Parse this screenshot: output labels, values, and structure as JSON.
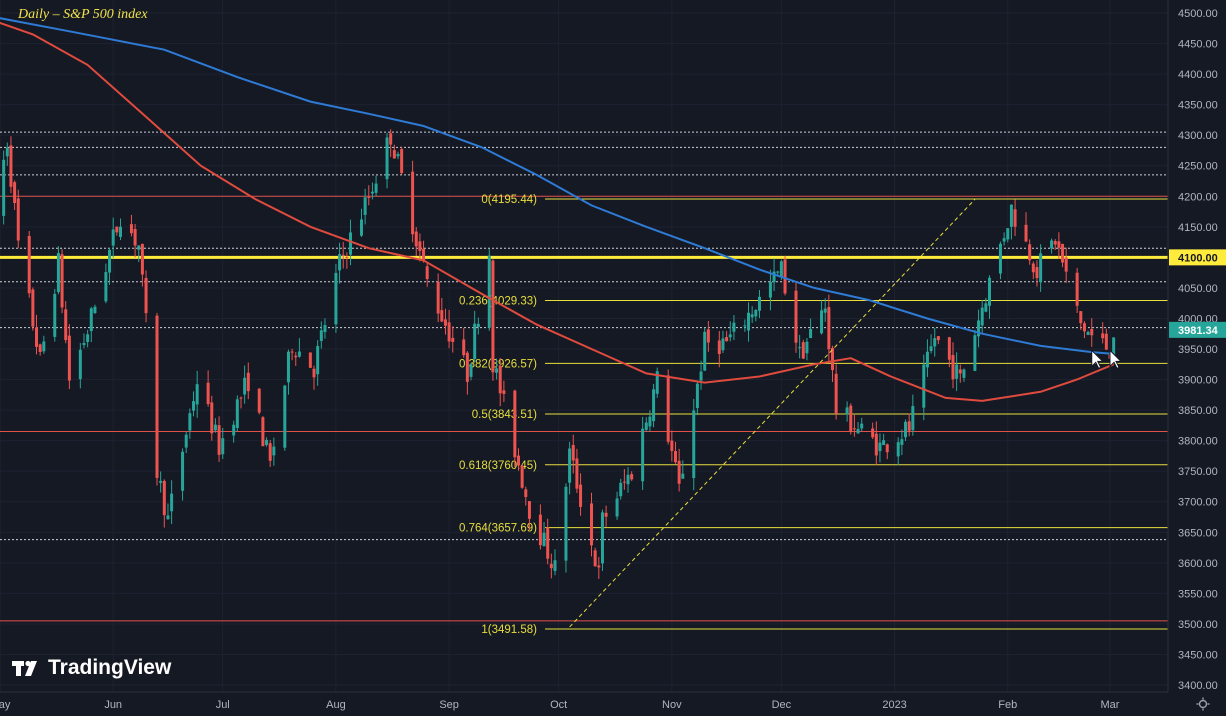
{
  "title": "Daily – S&P 500 index",
  "brand": "TradingView",
  "colors": {
    "background": "#151924",
    "up": "#26a69a",
    "down": "#ef5350",
    "ma_blue": "#2e7bd6",
    "ma_red": "#e04b3e",
    "fib": "#e8de3c",
    "key_level": "#ffeb3b",
    "red_level": "#e0514a"
  },
  "chart_data": {
    "type": "candlestick",
    "title": "Daily – S&P 500 index",
    "ylim": [
      3400,
      4500
    ],
    "y_ticks": [
      3400,
      3450,
      3500,
      3550,
      3600,
      3650,
      3700,
      3750,
      3800,
      3850,
      3900,
      3950,
      4000,
      4050,
      4100,
      4150,
      4200,
      4250,
      4300,
      4350,
      4400,
      4450,
      4500
    ],
    "y_tick_labels": [
      "3400.00",
      "3450.00",
      "3500.00",
      "3550.00",
      "3600.00",
      "3650.00",
      "3700.00",
      "3750.00",
      "3800.00",
      "3850.00",
      "3900.00",
      "3950.00",
      "4000.00",
      "4050.00",
      "4100.00",
      "4150.00",
      "4200.00",
      "4250.00",
      "4300.00",
      "4350.00",
      "4400.00",
      "4450.00",
      "4500.00"
    ],
    "x_ticks": [
      {
        "label": "May",
        "date": "2022-05-01"
      },
      {
        "label": "Jun",
        "date": "2022-06-01"
      },
      {
        "label": "Jul",
        "date": "2022-07-01"
      },
      {
        "label": "Aug",
        "date": "2022-08-01"
      },
      {
        "label": "Sep",
        "date": "2022-09-01"
      },
      {
        "label": "Oct",
        "date": "2022-10-01"
      },
      {
        "label": "Nov",
        "date": "2022-11-01"
      },
      {
        "label": "Dec",
        "date": "2022-12-01"
      },
      {
        "label": "2023",
        "date": "2023-01-01"
      },
      {
        "label": "Feb",
        "date": "2023-02-01"
      },
      {
        "label": "Mar",
        "date": "2023-03-01"
      }
    ],
    "last_price": 3981.34,
    "last_price_label": "3981.34",
    "key_level": 4100,
    "key_level_label": "4100.00",
    "fib_levels": [
      {
        "label": "0(4195.44)",
        "value": 4195.44
      },
      {
        "label": "0.236(4029.33)",
        "value": 4029.33
      },
      {
        "label": "0.382(3926.57)",
        "value": 3926.57
      },
      {
        "label": "0.5(3843.51)",
        "value": 3843.51
      },
      {
        "label": "0.618(3760.45)",
        "value": 3760.45
      },
      {
        "label": "0.764(3657.69)",
        "value": 3657.69
      },
      {
        "label": "1(3491.58)",
        "value": 3491.58
      }
    ],
    "red_levels": [
      4200,
      3815,
      3505
    ],
    "dashed_levels": [
      4305,
      4280,
      4235,
      4115,
      4060,
      3985,
      3638
    ],
    "trendline": [
      {
        "date": "2022-10-04",
        "value": 3495
      },
      {
        "date": "2023-01-23",
        "value": 4195
      }
    ],
    "arrows": [
      {
        "date": "2023-02-24",
        "value": 3915
      },
      {
        "date": "2023-03-01",
        "value": 3915
      }
    ],
    "ma_blue": [
      {
        "date": "2022-04-28",
        "value": 4495
      },
      {
        "date": "2022-05-20",
        "value": 4470
      },
      {
        "date": "2022-06-15",
        "value": 4440
      },
      {
        "date": "2022-07-05",
        "value": 4395
      },
      {
        "date": "2022-07-25",
        "value": 4355
      },
      {
        "date": "2022-08-10",
        "value": 4335
      },
      {
        "date": "2022-08-25",
        "value": 4315
      },
      {
        "date": "2022-09-10",
        "value": 4280
      },
      {
        "date": "2022-09-25",
        "value": 4235
      },
      {
        "date": "2022-10-10",
        "value": 4185
      },
      {
        "date": "2022-10-25",
        "value": 4150
      },
      {
        "date": "2022-11-10",
        "value": 4115
      },
      {
        "date": "2022-11-25",
        "value": 4080
      },
      {
        "date": "2022-12-10",
        "value": 4050
      },
      {
        "date": "2022-12-25",
        "value": 4030
      },
      {
        "date": "2023-01-10",
        "value": 4000
      },
      {
        "date": "2023-01-25",
        "value": 3975
      },
      {
        "date": "2023-02-10",
        "value": 3955
      },
      {
        "date": "2023-02-24",
        "value": 3945
      },
      {
        "date": "2023-03-02",
        "value": 3942
      }
    ],
    "ma_red": [
      {
        "date": "2022-04-28",
        "value": 4490
      },
      {
        "date": "2022-05-10",
        "value": 4465
      },
      {
        "date": "2022-05-25",
        "value": 4415
      },
      {
        "date": "2022-06-10",
        "value": 4330
      },
      {
        "date": "2022-06-25",
        "value": 4250
      },
      {
        "date": "2022-07-10",
        "value": 4195
      },
      {
        "date": "2022-07-25",
        "value": 4150
      },
      {
        "date": "2022-08-10",
        "value": 4115
      },
      {
        "date": "2022-08-25",
        "value": 4095
      },
      {
        "date": "2022-09-10",
        "value": 4040
      },
      {
        "date": "2022-09-25",
        "value": 3990
      },
      {
        "date": "2022-10-10",
        "value": 3950
      },
      {
        "date": "2022-10-25",
        "value": 3910
      },
      {
        "date": "2022-11-10",
        "value": 3895
      },
      {
        "date": "2022-11-25",
        "value": 3905
      },
      {
        "date": "2022-12-10",
        "value": 3925
      },
      {
        "date": "2022-12-20",
        "value": 3935
      },
      {
        "date": "2022-12-31",
        "value": 3905
      },
      {
        "date": "2023-01-15",
        "value": 3870
      },
      {
        "date": "2023-01-25",
        "value": 3865
      },
      {
        "date": "2023-02-10",
        "value": 3880
      },
      {
        "date": "2023-02-20",
        "value": 3900
      },
      {
        "date": "2023-03-02",
        "value": 3925
      }
    ],
    "price_path": [
      {
        "date": "2022-04-28",
        "value": 4130
      },
      {
        "date": "2022-05-03",
        "value": 4290
      },
      {
        "date": "2022-05-06",
        "value": 4120
      },
      {
        "date": "2022-05-12",
        "value": 3930
      },
      {
        "date": "2022-05-17",
        "value": 4090
      },
      {
        "date": "2022-05-20",
        "value": 3900
      },
      {
        "date": "2022-05-25",
        "value": 3980
      },
      {
        "date": "2022-06-01",
        "value": 4130
      },
      {
        "date": "2022-06-03",
        "value": 4170
      },
      {
        "date": "2022-06-08",
        "value": 4120
      },
      {
        "date": "2022-06-10",
        "value": 3990
      },
      {
        "date": "2022-06-13",
        "value": 3750
      },
      {
        "date": "2022-06-16",
        "value": 3670
      },
      {
        "date": "2022-06-24",
        "value": 3900
      },
      {
        "date": "2022-06-30",
        "value": 3790
      },
      {
        "date": "2022-07-08",
        "value": 3900
      },
      {
        "date": "2022-07-14",
        "value": 3760
      },
      {
        "date": "2022-07-20",
        "value": 3960
      },
      {
        "date": "2022-07-26",
        "value": 3920
      },
      {
        "date": "2022-08-02",
        "value": 4090
      },
      {
        "date": "2022-08-10",
        "value": 4200
      },
      {
        "date": "2022-08-16",
        "value": 4300
      },
      {
        "date": "2022-08-19",
        "value": 4230
      },
      {
        "date": "2022-08-26",
        "value": 4060
      },
      {
        "date": "2022-09-06",
        "value": 3910
      },
      {
        "date": "2022-09-12",
        "value": 4110
      },
      {
        "date": "2022-09-13",
        "value": 3930
      },
      {
        "date": "2022-09-23",
        "value": 3690
      },
      {
        "date": "2022-09-30",
        "value": 3590
      },
      {
        "date": "2022-10-04",
        "value": 3780
      },
      {
        "date": "2022-10-12",
        "value": 3580
      },
      {
        "date": "2022-10-13",
        "value": 3670
      },
      {
        "date": "2022-10-21",
        "value": 3750
      },
      {
        "date": "2022-10-28",
        "value": 3900
      },
      {
        "date": "2022-11-03",
        "value": 3720
      },
      {
        "date": "2022-11-10",
        "value": 3960
      },
      {
        "date": "2022-11-16",
        "value": 3960
      },
      {
        "date": "2022-11-25",
        "value": 4030
      },
      {
        "date": "2022-12-01",
        "value": 4080
      },
      {
        "date": "2022-12-06",
        "value": 3940
      },
      {
        "date": "2022-12-13",
        "value": 4020
      },
      {
        "date": "2022-12-16",
        "value": 3850
      },
      {
        "date": "2022-12-28",
        "value": 3790
      },
      {
        "date": "2023-01-05",
        "value": 3820
      },
      {
        "date": "2023-01-12",
        "value": 3970
      },
      {
        "date": "2023-01-19",
        "value": 3900
      },
      {
        "date": "2023-01-27",
        "value": 4060
      },
      {
        "date": "2023-02-02",
        "value": 4180
      },
      {
        "date": "2023-02-09",
        "value": 4080
      },
      {
        "date": "2023-02-14",
        "value": 4130
      },
      {
        "date": "2023-02-21",
        "value": 3990
      },
      {
        "date": "2023-02-24",
        "value": 3970
      },
      {
        "date": "2023-03-01",
        "value": 3950
      },
      {
        "date": "2023-03-02",
        "value": 3981
      }
    ]
  }
}
